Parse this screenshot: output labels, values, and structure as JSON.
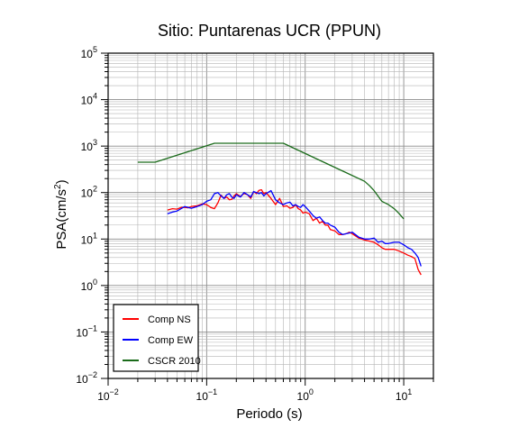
{
  "chart_data": {
    "type": "line",
    "title": "Sitio: Puntarenas UCR (PPUN)",
    "xlabel": "Periodo (s)",
    "ylabel": "PSA(cm/s",
    "ylabel_sup": "2",
    "ylabel_close": ")",
    "xscale": "log",
    "yscale": "log",
    "xlim": [
      0.01,
      20
    ],
    "ylim": [
      0.01,
      100000
    ],
    "grid": true,
    "legend_position": "bottom-left",
    "x_ticks": [
      {
        "value": 0.01,
        "base": "10",
        "exp": "−2"
      },
      {
        "value": 0.1,
        "base": "10",
        "exp": "−1"
      },
      {
        "value": 1,
        "base": "10",
        "exp": "0"
      },
      {
        "value": 10,
        "base": "10",
        "exp": "1"
      }
    ],
    "y_ticks": [
      {
        "value": 0.01,
        "base": "10",
        "exp": "−2"
      },
      {
        "value": 0.1,
        "base": "10",
        "exp": "−1"
      },
      {
        "value": 1,
        "base": "10",
        "exp": "0"
      },
      {
        "value": 10,
        "base": "10",
        "exp": "1"
      },
      {
        "value": 100,
        "base": "10",
        "exp": "2"
      },
      {
        "value": 1000,
        "base": "10",
        "exp": "3"
      },
      {
        "value": 10000,
        "base": "10",
        "exp": "4"
      },
      {
        "value": 100000,
        "base": "10",
        "exp": "5"
      }
    ],
    "series": [
      {
        "name": "Comp NS",
        "color": "#ff0000",
        "x": [
          0.04,
          0.045,
          0.05,
          0.055,
          0.06,
          0.065,
          0.07,
          0.08,
          0.09,
          0.1,
          0.11,
          0.12,
          0.13,
          0.14,
          0.15,
          0.16,
          0.17,
          0.18,
          0.19,
          0.2,
          0.22,
          0.24,
          0.26,
          0.28,
          0.3,
          0.32,
          0.34,
          0.36,
          0.38,
          0.4,
          0.45,
          0.5,
          0.55,
          0.6,
          0.65,
          0.7,
          0.75,
          0.8,
          0.85,
          0.9,
          0.95,
          1.0,
          1.1,
          1.2,
          1.3,
          1.4,
          1.5,
          1.6,
          1.7,
          1.8,
          2.0,
          2.2,
          2.4,
          2.6,
          2.8,
          3.0,
          3.5,
          4.0,
          4.5,
          5.0,
          5.5,
          6.0,
          6.5,
          7.0,
          8.0,
          9.0,
          10.0,
          11.0,
          12.0,
          13.0,
          14.0,
          15.0
        ],
        "y": [
          42,
          45,
          44,
          48,
          48,
          47,
          50,
          52,
          57,
          55,
          48,
          45,
          60,
          88,
          75,
          80,
          70,
          72,
          85,
          95,
          82,
          96,
          90,
          75,
          105,
          95,
          112,
          115,
          95,
          100,
          75,
          55,
          75,
          50,
          52,
          46,
          48,
          55,
          45,
          42,
          36,
          38,
          35,
          25,
          28,
          22,
          24,
          20,
          20,
          16,
          15,
          12.5,
          12.5,
          13,
          14,
          13,
          10.5,
          9.5,
          9.0,
          8.5,
          7.5,
          6.5,
          6.0,
          6.0,
          6.0,
          5.5,
          5.0,
          4.5,
          4.2,
          3.8,
          2.2,
          1.7
        ]
      },
      {
        "name": "Comp EW",
        "color": "#0000ff",
        "x": [
          0.04,
          0.045,
          0.05,
          0.055,
          0.06,
          0.065,
          0.07,
          0.08,
          0.09,
          0.1,
          0.11,
          0.12,
          0.13,
          0.14,
          0.15,
          0.16,
          0.17,
          0.18,
          0.19,
          0.2,
          0.22,
          0.24,
          0.26,
          0.28,
          0.3,
          0.32,
          0.34,
          0.36,
          0.38,
          0.4,
          0.45,
          0.5,
          0.55,
          0.6,
          0.65,
          0.7,
          0.75,
          0.8,
          0.85,
          0.9,
          0.95,
          1.0,
          1.1,
          1.2,
          1.3,
          1.4,
          1.5,
          1.6,
          1.7,
          1.8,
          2.0,
          2.2,
          2.4,
          2.6,
          2.8,
          3.0,
          3.5,
          4.0,
          4.5,
          5.0,
          5.5,
          6.0,
          6.5,
          7.0,
          8.0,
          9.0,
          10.0,
          11.0,
          12.0,
          13.0,
          14.0,
          15.0
        ],
        "y": [
          35,
          38,
          40,
          45,
          50,
          48,
          46,
          50,
          55,
          65,
          70,
          95,
          100,
          85,
          75,
          90,
          95,
          80,
          75,
          90,
          80,
          100,
          90,
          80,
          105,
          100,
          95,
          100,
          85,
          95,
          110,
          70,
          60,
          55,
          60,
          62,
          52,
          55,
          50,
          48,
          55,
          50,
          40,
          32,
          28,
          30,
          25,
          22,
          22,
          20,
          18,
          14,
          12.5,
          13,
          13.5,
          14,
          11,
          10,
          10,
          10.5,
          8.5,
          9,
          8,
          8,
          8.5,
          8.5,
          7.5,
          6.5,
          6.0,
          5.0,
          4.0,
          2.6
        ]
      },
      {
        "name": "CSCR 2010",
        "color": "#1a6b1a",
        "x": [
          0.02,
          0.03,
          0.12,
          0.6,
          4.0,
          4.5,
          5.0,
          6.0,
          7.0,
          8.0,
          9.0,
          10.0
        ],
        "y": [
          450,
          450,
          1150,
          1150,
          175,
          140,
          110,
          65,
          55,
          45,
          35,
          27
        ]
      }
    ]
  }
}
